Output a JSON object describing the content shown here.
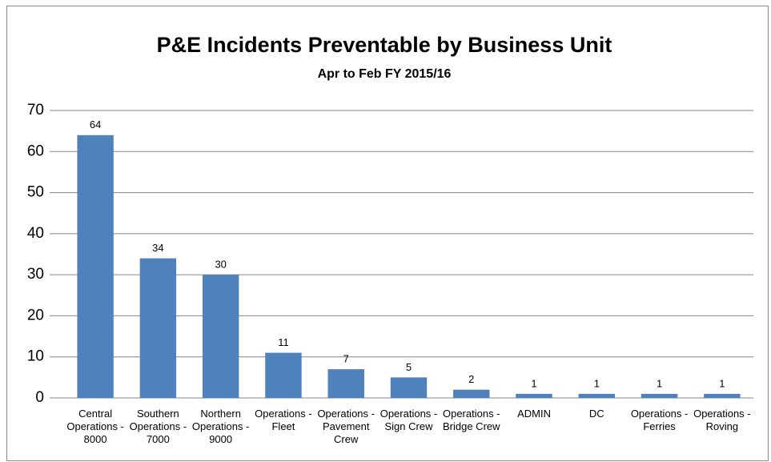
{
  "chart_data": {
    "type": "bar",
    "title": "P&E Incidents Preventable by Business Unit",
    "subtitle": "Apr to Feb FY 2015/16",
    "categories": [
      "Central Operations - 8000",
      "Southern Operations - 7000",
      "Northern Operations - 9000",
      "Operations - Fleet",
      "Operations - Pavement Crew",
      "Operations - Sign Crew",
      "Operations - Bridge Crew",
      "ADMIN",
      "DC",
      "Operations - Ferries",
      "Operations - Roving"
    ],
    "values": [
      64,
      34,
      30,
      11,
      7,
      5,
      2,
      1,
      1,
      1,
      1
    ],
    "color": "#4f81bd",
    "ylim": [
      0,
      70
    ],
    "yticks": [
      0,
      10,
      20,
      30,
      40,
      50,
      60,
      70
    ],
    "grid": true
  }
}
